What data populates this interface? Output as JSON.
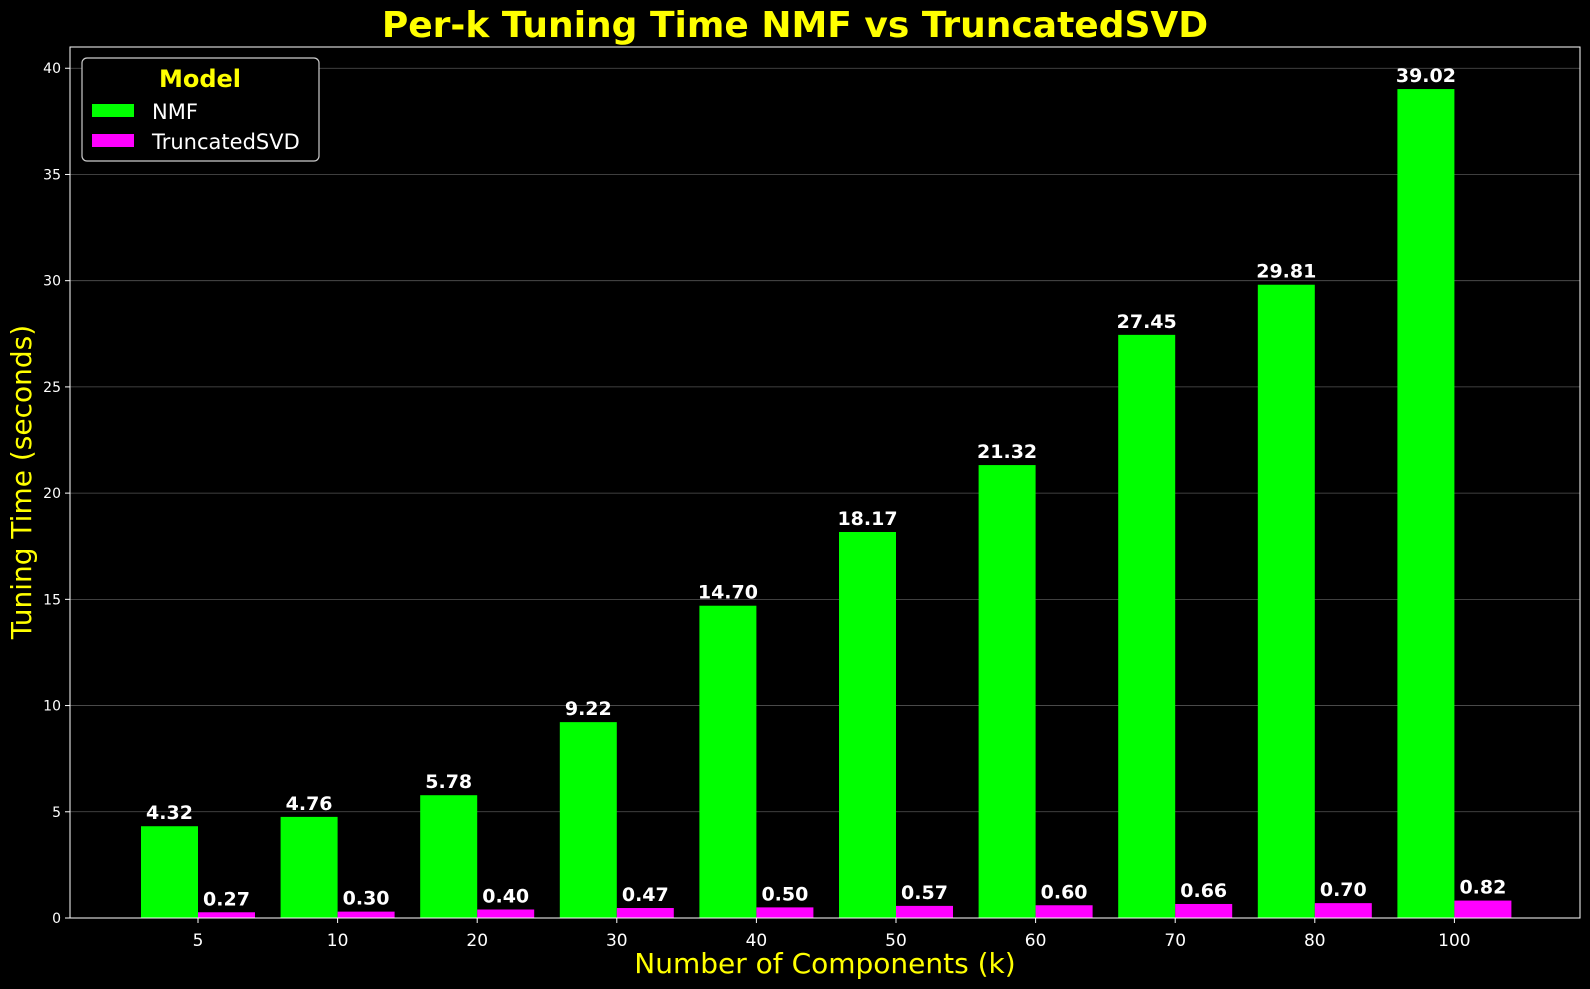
{
  "chart_data": {
    "type": "bar",
    "title": "Per-k Tuning Time NMF vs TruncatedSVD",
    "xlabel": "Number of Components (k)",
    "ylabel": "Tuning Time (seconds)",
    "categories": [
      "5",
      "10",
      "20",
      "30",
      "40",
      "50",
      "60",
      "70",
      "80",
      "100"
    ],
    "series": [
      {
        "name": "NMF",
        "color": "#00ff00",
        "values": [
          4.32,
          4.76,
          5.78,
          9.22,
          14.7,
          18.17,
          21.32,
          27.45,
          29.81,
          39.02
        ],
        "value_labels": [
          "4.32",
          "4.76",
          "5.78",
          "9.22",
          "14.70",
          "18.17",
          "21.32",
          "27.45",
          "29.81",
          "39.02"
        ]
      },
      {
        "name": "TruncatedSVD",
        "color": "#ff00ff",
        "values": [
          0.27,
          0.3,
          0.4,
          0.47,
          0.5,
          0.57,
          0.6,
          0.66,
          0.7,
          0.82
        ],
        "value_labels": [
          "0.27",
          "0.30",
          "0.40",
          "0.47",
          "0.50",
          "0.57",
          "0.60",
          "0.66",
          "0.70",
          "0.82"
        ]
      }
    ],
    "ylim": [
      0,
      41
    ],
    "yticks": [
      0,
      5,
      10,
      15,
      20,
      25,
      30,
      35,
      40
    ],
    "grid": "y",
    "legend": {
      "title": "Model",
      "position": "top-left"
    },
    "colors": {
      "background": "#000000",
      "title": "#ffff00",
      "axis_label": "#ffff00",
      "text": "#ffffff"
    }
  }
}
